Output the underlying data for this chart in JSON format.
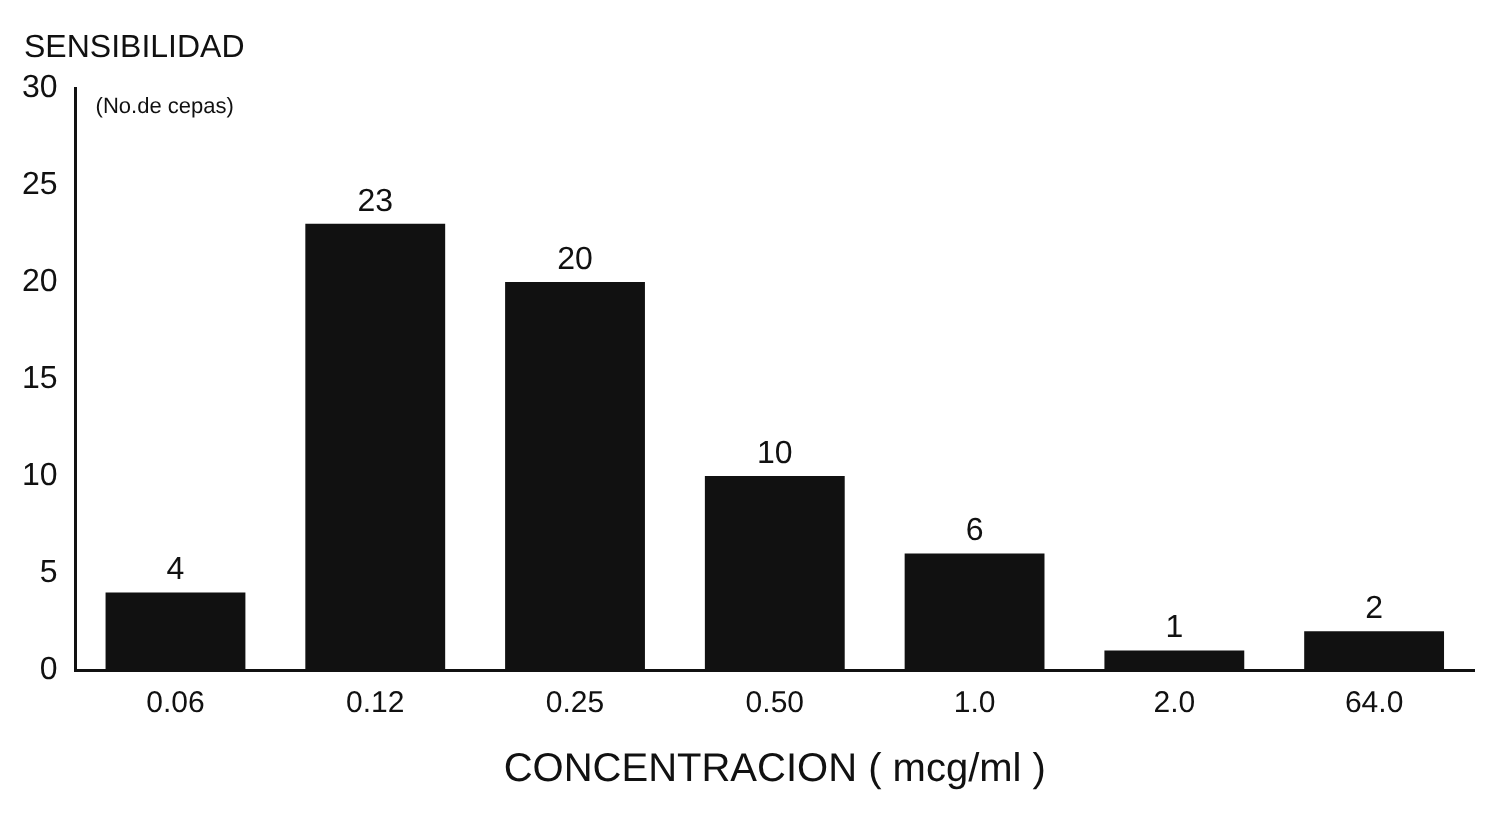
{
  "chart_data": {
    "type": "bar",
    "ylabel": "SENSIBILIDAD",
    "xlabel": "CONCENTRACION ( mcg/ml )",
    "annotations": [
      "(No.de cepas)"
    ],
    "categories": [
      "0.06",
      "0.12",
      "0.25",
      "0.50",
      "1.0",
      "2.0",
      "64.0"
    ],
    "values": [
      4,
      23,
      20,
      10,
      6,
      1,
      2
    ],
    "color": "#111111",
    "ylim": [
      0,
      30
    ],
    "yticks": [
      0,
      5,
      10,
      15,
      20,
      25,
      30
    ],
    "grid": false,
    "legend": false,
    "data_labels": true
  }
}
